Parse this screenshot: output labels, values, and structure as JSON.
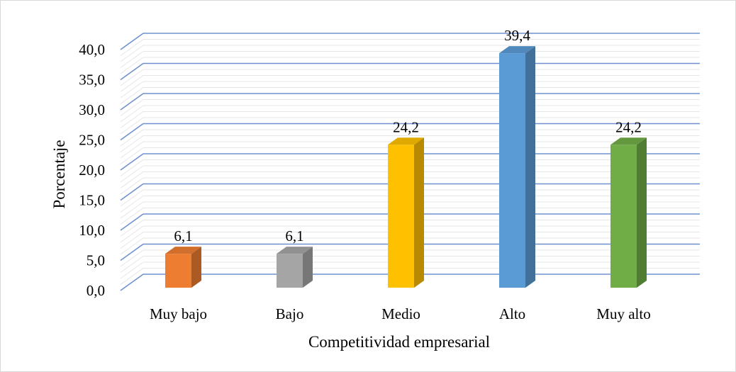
{
  "chart_data": {
    "type": "bar",
    "three_d": true,
    "categories": [
      "Muy bajo",
      "Bajo",
      "Medio",
      "Alto",
      "Muy alto"
    ],
    "values": [
      6.1,
      6.1,
      24.2,
      39.4,
      24.2
    ],
    "value_labels": [
      "6,1",
      "6,1",
      "24,2",
      "39,4",
      "24,2"
    ],
    "bar_colors": [
      "#ED7D31",
      "#A5A5A5",
      "#FFC000",
      "#5B9BD5",
      "#70AD47"
    ],
    "title": "",
    "xlabel": "Competitividad empresarial",
    "ylabel": "Porcentaje",
    "ylim": [
      0,
      40
    ],
    "yticks": [
      0,
      5,
      10,
      15,
      20,
      25,
      30,
      35,
      40
    ],
    "ytick_labels": [
      "0,0",
      "5,0",
      "10,0",
      "15,0",
      "20,0",
      "25,0",
      "30,0",
      "35,0",
      "40,0"
    ],
    "grid": true,
    "grid_color": "#4472C4",
    "legend": "none"
  }
}
